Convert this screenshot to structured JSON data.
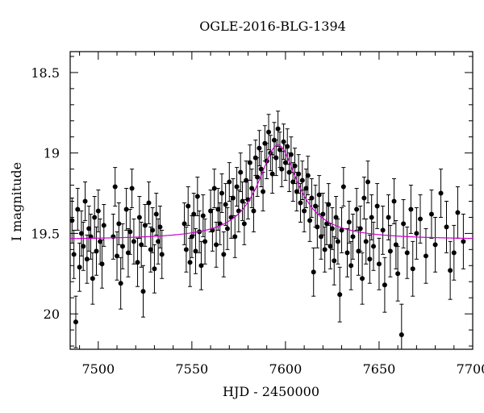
{
  "chart_data": {
    "type": "scatter",
    "title": "OGLE-2016-BLG-1394",
    "xlabel": "HJD - 2450000",
    "ylabel": "I magnitude",
    "xlim": [
      7485,
      7700
    ],
    "ylim": [
      20.22,
      18.37
    ],
    "y_inverted": true,
    "grid": false,
    "legend": "none",
    "x_ticks": [
      7500,
      7550,
      7600,
      7650,
      7700
    ],
    "x_tick_labels": [
      "7500",
      "7550",
      "7600",
      "7650",
      "7700"
    ],
    "y_ticks": [
      18.5,
      19,
      19.5,
      20
    ],
    "y_tick_labels": [
      "18.5",
      "19",
      "19.5",
      "20"
    ],
    "colors": {
      "data": "#000000",
      "model": "#cc00cc"
    },
    "model": {
      "name": "",
      "baseline": 19.54,
      "peak": 18.95,
      "t0": 7596,
      "tE": 13,
      "x": [
        7485,
        7500,
        7520,
        7540,
        7555,
        7565,
        7575,
        7582,
        7588,
        7592,
        7596,
        7600,
        7604,
        7610,
        7617,
        7625,
        7635,
        7650,
        7670,
        7700
      ],
      "y": [
        19.54,
        19.54,
        19.53,
        19.51,
        19.45,
        19.38,
        19.26,
        19.14,
        19.03,
        18.97,
        18.95,
        18.97,
        19.03,
        19.15,
        19.29,
        19.4,
        19.47,
        19.51,
        19.53,
        19.54
      ]
    },
    "series": [
      {
        "values": [
          [
            7486,
            19.42,
            0.14
          ],
          [
            7487,
            19.63,
            0.15
          ],
          [
            7488,
            20.05,
            0.16
          ],
          [
            7489,
            19.35,
            0.13
          ],
          [
            7490,
            19.71,
            0.15
          ],
          [
            7491,
            19.5,
            0.14
          ],
          [
            7492,
            19.58,
            0.15
          ],
          [
            7493,
            19.3,
            0.12
          ],
          [
            7494,
            19.66,
            0.15
          ],
          [
            7495,
            19.47,
            0.14
          ],
          [
            7496,
            19.52,
            0.14
          ],
          [
            7497,
            19.78,
            0.16
          ],
          [
            7498,
            19.4,
            0.13
          ],
          [
            7499,
            19.61,
            0.15
          ],
          [
            7500,
            19.36,
            0.13
          ],
          [
            7501,
            19.55,
            0.14
          ],
          [
            7502,
            19.69,
            0.15
          ],
          [
            7503,
            19.45,
            0.13
          ],
          [
            7508,
            19.52,
            0.14
          ],
          [
            7509,
            19.21,
            0.12
          ],
          [
            7510,
            19.64,
            0.15
          ],
          [
            7511,
            19.44,
            0.13
          ],
          [
            7512,
            19.81,
            0.16
          ],
          [
            7513,
            19.58,
            0.14
          ],
          [
            7515,
            19.35,
            0.13
          ],
          [
            7516,
            19.62,
            0.15
          ],
          [
            7517,
            19.49,
            0.14
          ],
          [
            7518,
            19.22,
            0.12
          ],
          [
            7519,
            19.55,
            0.14
          ],
          [
            7521,
            19.68,
            0.15
          ],
          [
            7522,
            19.4,
            0.13
          ],
          [
            7523,
            19.57,
            0.14
          ],
          [
            7524,
            19.86,
            0.16
          ],
          [
            7525,
            19.45,
            0.13
          ],
          [
            7527,
            19.31,
            0.13
          ],
          [
            7528,
            19.6,
            0.14
          ],
          [
            7529,
            19.48,
            0.14
          ],
          [
            7530,
            19.72,
            0.15
          ],
          [
            7531,
            19.38,
            0.13
          ],
          [
            7532,
            19.55,
            0.14
          ],
          [
            7533,
            19.46,
            0.13
          ],
          [
            7534,
            19.63,
            0.15
          ],
          [
            7546,
            19.44,
            0.13
          ],
          [
            7547,
            19.6,
            0.14
          ],
          [
            7548,
            19.33,
            0.12
          ],
          [
            7549,
            19.68,
            0.15
          ],
          [
            7550,
            19.52,
            0.13
          ],
          [
            7551,
            19.38,
            0.13
          ],
          [
            7552,
            19.61,
            0.14
          ],
          [
            7553,
            19.27,
            0.12
          ],
          [
            7554,
            19.49,
            0.13
          ],
          [
            7555,
            19.7,
            0.15
          ],
          [
            7556,
            19.39,
            0.13
          ],
          [
            7557,
            19.55,
            0.14
          ],
          [
            7560,
            19.36,
            0.13
          ],
          [
            7561,
            19.48,
            0.13
          ],
          [
            7562,
            19.22,
            0.12
          ],
          [
            7563,
            19.57,
            0.14
          ],
          [
            7564,
            19.35,
            0.13
          ],
          [
            7565,
            19.44,
            0.13
          ],
          [
            7566,
            19.25,
            0.12
          ],
          [
            7567,
            19.63,
            0.14
          ],
          [
            7568,
            19.32,
            0.13
          ],
          [
            7569,
            19.47,
            0.13
          ],
          [
            7570,
            19.18,
            0.12
          ],
          [
            7571,
            19.4,
            0.13
          ],
          [
            7572,
            19.28,
            0.12
          ],
          [
            7573,
            19.52,
            0.13
          ],
          [
            7574,
            19.21,
            0.12
          ],
          [
            7575,
            19.36,
            0.13
          ],
          [
            7576,
            19.12,
            0.12
          ],
          [
            7577,
            19.3,
            0.12
          ],
          [
            7578,
            19.44,
            0.13
          ],
          [
            7579,
            19.17,
            0.12
          ],
          [
            7580,
            19.29,
            0.12
          ],
          [
            7581,
            19.06,
            0.11
          ],
          [
            7582,
            19.22,
            0.12
          ],
          [
            7583,
            19.36,
            0.13
          ],
          [
            7584,
            19.03,
            0.11
          ],
          [
            7585,
            19.15,
            0.12
          ],
          [
            7586,
            18.97,
            0.11
          ],
          [
            7587,
            19.1,
            0.11
          ],
          [
            7588,
            19.24,
            0.12
          ],
          [
            7589,
            18.94,
            0.11
          ],
          [
            7590,
            19.05,
            0.11
          ],
          [
            7591,
            18.87,
            0.11
          ],
          [
            7592,
            19.0,
            0.11
          ],
          [
            7593,
            19.13,
            0.12
          ],
          [
            7594,
            18.92,
            0.11
          ],
          [
            7595,
            19.03,
            0.11
          ],
          [
            7596,
            18.85,
            0.11
          ],
          [
            7597,
            18.98,
            0.11
          ],
          [
            7598,
            19.1,
            0.11
          ],
          [
            7599,
            18.93,
            0.11
          ],
          [
            7600,
            19.06,
            0.11
          ],
          [
            7601,
            18.96,
            0.11
          ],
          [
            7602,
            19.12,
            0.12
          ],
          [
            7603,
            19.01,
            0.11
          ],
          [
            7604,
            19.18,
            0.12
          ],
          [
            7605,
            19.08,
            0.11
          ],
          [
            7606,
            19.24,
            0.12
          ],
          [
            7607,
            19.13,
            0.12
          ],
          [
            7608,
            19.31,
            0.12
          ],
          [
            7609,
            19.17,
            0.12
          ],
          [
            7610,
            19.36,
            0.13
          ],
          [
            7611,
            19.22,
            0.12
          ],
          [
            7612,
            19.14,
            0.12
          ],
          [
            7613,
            19.42,
            0.13
          ],
          [
            7614,
            19.28,
            0.12
          ],
          [
            7615,
            19.74,
            0.15
          ],
          [
            7616,
            19.33,
            0.13
          ],
          [
            7617,
            19.46,
            0.13
          ],
          [
            7618,
            19.26,
            0.12
          ],
          [
            7619,
            19.52,
            0.14
          ],
          [
            7620,
            19.38,
            0.13
          ],
          [
            7621,
            19.6,
            0.14
          ],
          [
            7622,
            19.44,
            0.13
          ],
          [
            7623,
            19.32,
            0.13
          ],
          [
            7624,
            19.58,
            0.14
          ],
          [
            7625,
            19.47,
            0.13
          ],
          [
            7626,
            19.67,
            0.15
          ],
          [
            7627,
            19.4,
            0.13
          ],
          [
            7628,
            19.55,
            0.14
          ],
          [
            7629,
            19.88,
            0.17
          ],
          [
            7630,
            19.48,
            0.14
          ],
          [
            7631,
            19.21,
            0.12
          ],
          [
            7633,
            19.62,
            0.15
          ],
          [
            7634,
            19.43,
            0.13
          ],
          [
            7635,
            19.7,
            0.15
          ],
          [
            7636,
            19.52,
            0.14
          ],
          [
            7638,
            19.35,
            0.13
          ],
          [
            7639,
            19.61,
            0.15
          ],
          [
            7640,
            19.47,
            0.14
          ],
          [
            7641,
            19.78,
            0.16
          ],
          [
            7642,
            19.28,
            0.13
          ],
          [
            7643,
            19.55,
            0.14
          ],
          [
            7644,
            19.18,
            0.13
          ],
          [
            7645,
            19.66,
            0.15
          ],
          [
            7646,
            19.4,
            0.14
          ],
          [
            7647,
            19.58,
            0.15
          ],
          [
            7649,
            19.33,
            0.14
          ],
          [
            7650,
            19.69,
            0.16
          ],
          [
            7652,
            19.48,
            0.15
          ],
          [
            7653,
            19.82,
            0.17
          ],
          [
            7655,
            19.4,
            0.14
          ],
          [
            7656,
            19.61,
            0.16
          ],
          [
            7658,
            19.3,
            0.14
          ],
          [
            7659,
            19.57,
            0.15
          ],
          [
            7660,
            19.75,
            0.17
          ],
          [
            7662,
            20.13,
            0.19
          ],
          [
            7663,
            19.44,
            0.15
          ],
          [
            7665,
            19.62,
            0.16
          ],
          [
            7667,
            19.35,
            0.15
          ],
          [
            7668,
            19.72,
            0.17
          ],
          [
            7670,
            19.5,
            0.16
          ],
          [
            7672,
            19.41,
            0.15
          ],
          [
            7675,
            19.64,
            0.17
          ],
          [
            7678,
            19.38,
            0.15
          ],
          [
            7680,
            19.57,
            0.17
          ],
          [
            7683,
            19.25,
            0.15
          ],
          [
            7686,
            19.46,
            0.16
          ],
          [
            7688,
            19.73,
            0.18
          ],
          [
            7690,
            19.62,
            0.17
          ],
          [
            7692,
            19.37,
            0.16
          ],
          [
            7695,
            19.55,
            0.17
          ]
        ]
      }
    ]
  }
}
